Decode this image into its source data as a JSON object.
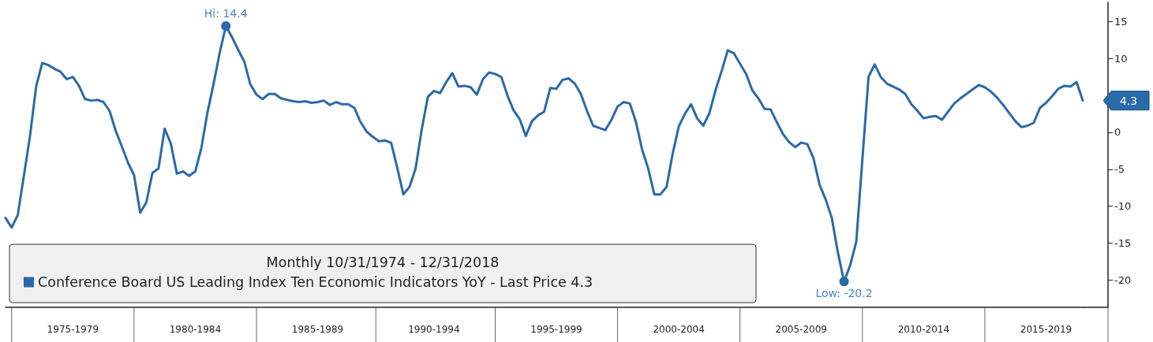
{
  "chart_data": {
    "type": "line",
    "legend_title": "Monthly 10/31/1974 - 12/31/2018",
    "legend": "bottom left",
    "grid": false,
    "marker": "none",
    "line_style": "solid",
    "ylim": [
      -23.7,
      17.6
    ],
    "yticks": [
      -20,
      -15,
      -10,
      -5,
      0,
      10,
      15
    ],
    "categories": [
      null,
      null,
      null,
      null,
      null,
      null,
      null,
      null,
      null,
      null,
      null,
      "1975-1979",
      null,
      null,
      null,
      null,
      null,
      null,
      null,
      null,
      null,
      null,
      null,
      null,
      null,
      null,
      null,
      null,
      null,
      null,
      null,
      "1980-1984",
      null,
      null,
      null,
      null,
      null,
      null,
      null,
      null,
      null,
      null,
      null,
      null,
      null,
      null,
      null,
      null,
      null,
      null,
      null,
      "1985-1989",
      null,
      null,
      null,
      null,
      null,
      null,
      null,
      null,
      null,
      null,
      null,
      null,
      null,
      null,
      null,
      null,
      null,
      null,
      "1990-1994",
      null,
      null,
      null,
      null,
      null,
      null,
      null,
      null,
      null,
      null,
      null,
      null,
      null,
      null,
      null,
      null,
      null,
      null,
      null,
      "1995-1999",
      null,
      null,
      null,
      null,
      null,
      null,
      null,
      null,
      null,
      null,
      null,
      null,
      null,
      null,
      null,
      null,
      null,
      null,
      null,
      "2000-2004",
      null,
      null,
      null,
      null,
      null,
      null,
      null,
      null,
      null,
      null,
      null,
      null,
      null,
      null,
      null,
      null,
      null,
      null,
      null,
      "2005-2009",
      null,
      null,
      null,
      null,
      null,
      null,
      null,
      null,
      null,
      null,
      null,
      null,
      null,
      null,
      null,
      null,
      null,
      null,
      null,
      "2010-2014",
      null,
      null,
      null,
      null,
      null,
      null,
      null,
      null,
      null,
      null,
      null,
      null,
      null,
      null,
      null,
      null,
      null,
      null,
      null,
      "2015-2019",
      null,
      null,
      null,
      null,
      null,
      null
    ],
    "annotations": [
      {
        "text": "Hi: 14.4",
        "y": 14.4
      },
      {
        "text": "Low: -20.2",
        "y": -20.2
      },
      "4.3"
    ],
    "series": [
      {
        "name": "Conference Board US Leading Index Ten Economic Indicators YoY - Last Price 4.3",
        "color": "#2a6aa8",
        "values": [
          -11.6,
          -12.9,
          -11.2,
          -5.9,
          -0.5,
          6.2,
          9.4,
          9.1,
          8.6,
          8.2,
          7.2,
          7.5,
          6.3,
          4.5,
          4.3,
          4.4,
          4.1,
          2.9,
          0.2,
          -1.9,
          -4.1,
          -5.8,
          -10.9,
          -9.5,
          -5.5,
          -4.9,
          0.5,
          -1.5,
          -5.6,
          -5.3,
          -5.9,
          -5.3,
          -2.1,
          2.7,
          6.6,
          10.8,
          14.4,
          12.9,
          11.2,
          9.6,
          6.5,
          5.1,
          4.5,
          5.2,
          5.2,
          4.6,
          4.4,
          4.2,
          4.1,
          4.2,
          4.0,
          4.1,
          4.3,
          3.7,
          4.1,
          3.8,
          3.8,
          3.3,
          1.4,
          0.1,
          -0.6,
          -1.2,
          -1.1,
          -1.4,
          -4.8,
          -8.4,
          -7.4,
          -4.9,
          0.4,
          4.8,
          5.6,
          5.3,
          6.8,
          8.0,
          6.2,
          6.3,
          6.1,
          5.1,
          7.2,
          8.1,
          7.9,
          7.5,
          5.0,
          3.0,
          1.8,
          -0.5,
          1.5,
          2.3,
          2.8,
          6.0,
          5.9,
          7.1,
          7.3,
          6.6,
          5.2,
          2.9,
          0.9,
          0.6,
          0.3,
          1.7,
          3.5,
          4.1,
          3.9,
          1.4,
          -2.3,
          -4.9,
          -8.4,
          -8.4,
          -7.4,
          -2.9,
          0.8,
          2.5,
          3.8,
          1.9,
          0.9,
          2.6,
          5.7,
          8.3,
          11.1,
          10.7,
          9.3,
          7.9,
          5.7,
          4.6,
          3.2,
          3.1,
          1.4,
          -0.2,
          -1.3,
          -2.0,
          -1.4,
          -1.6,
          -3.5,
          -7.1,
          -9.1,
          -11.6,
          -16.3,
          -20.2,
          -18.0,
          -14.8,
          -3.6,
          7.5,
          9.2,
          7.5,
          6.6,
          6.2,
          5.8,
          5.2,
          3.8,
          2.9,
          1.9,
          2.1,
          2.2,
          1.7,
          2.8,
          3.9,
          4.6,
          5.2,
          5.8,
          6.4,
          6.1,
          5.5,
          4.7,
          3.7,
          2.6,
          1.5,
          0.7,
          0.9,
          1.3,
          3.3,
          4.0,
          4.9,
          5.9,
          6.3,
          6.2,
          6.8,
          4.3
        ]
      }
    ]
  }
}
